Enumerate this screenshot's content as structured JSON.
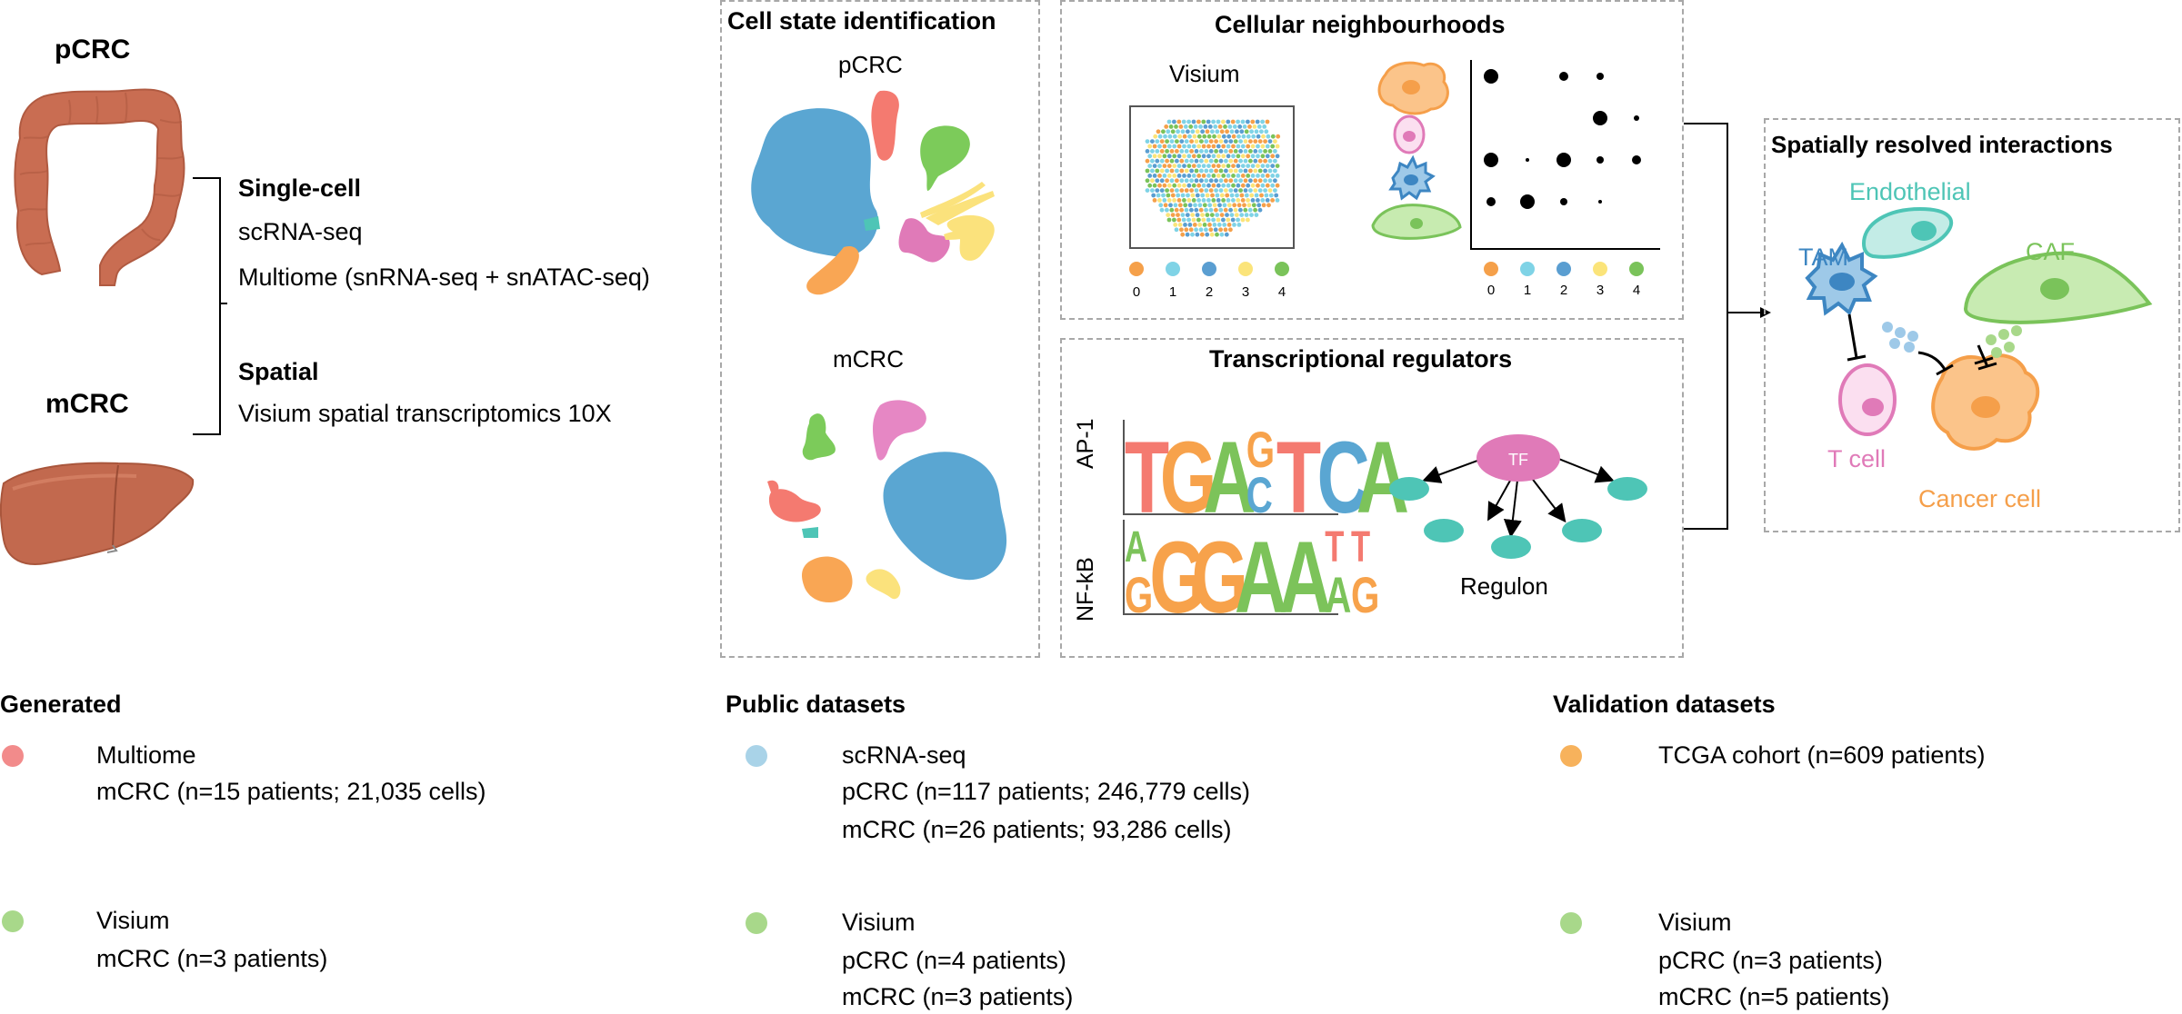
{
  "left": {
    "pcrc_label": "pCRC",
    "mcrc_label": "mCRC",
    "single_cell_heading": "Single-cell",
    "single_cell_items": [
      "scRNA-seq",
      "Multiome (snRNA-seq + snATAC-seq)"
    ],
    "spatial_heading": "Spatial",
    "spatial_items": [
      "Visium spatial transcriptomics 10X"
    ]
  },
  "cell_state": {
    "title": "Cell state identification",
    "pcrc_label": "pCRC",
    "mcrc_label": "mCRC"
  },
  "neighbourhoods": {
    "title": "Cellular neighbourhoods",
    "visium_label": "Visium",
    "legend_ticks": [
      "0",
      "1",
      "2",
      "3",
      "4"
    ],
    "cluster_colors": [
      "#f5a04a",
      "#7fd3e6",
      "#5a9ed1",
      "#fbe47a",
      "#7ac35a"
    ]
  },
  "regulators": {
    "title": "Transcriptional regulators",
    "motifs": [
      {
        "name": "AP-1"
      },
      {
        "name": "NF-kB"
      }
    ],
    "tf_label": "TF",
    "regulon_label": "Regulon"
  },
  "interactions": {
    "title": "Spatially resolved interactions",
    "cells": {
      "endothelial": "Endothelial",
      "tam": "TAM",
      "caf": "CAF",
      "tcell": "T cell",
      "cancer": "Cancer cell"
    }
  },
  "datasets": {
    "generated": {
      "heading": "Generated",
      "entries": [
        {
          "color": "#f28b8b",
          "lines": [
            "Multiome",
            "mCRC (n=15 patients; 21,035 cells)"
          ]
        },
        {
          "color": "#a8d88a",
          "lines": [
            "Visium",
            "mCRC (n=3 patients)"
          ]
        }
      ]
    },
    "public": {
      "heading": "Public datasets",
      "entries": [
        {
          "color": "#a9d3e8",
          "lines": [
            "scRNA-seq",
            "pCRC (n=117 patients; 246,779 cells)",
            "mCRC (n=26 patients;  93,286 cells)"
          ]
        },
        {
          "color": "#a8d88a",
          "lines": [
            "Visium",
            "pCRC (n=4 patients)",
            "mCRC (n=3 patients)"
          ]
        }
      ]
    },
    "validation": {
      "heading": "Validation datasets",
      "entries": [
        {
          "color": "#f7b25c",
          "lines": [
            "TCGA cohort (n=609 patients)"
          ]
        },
        {
          "color": "#a8d88a",
          "lines": [
            "Visium",
            "pCRC (n=3 patients)",
            "mCRC (n=5 patients)"
          ]
        }
      ]
    }
  }
}
